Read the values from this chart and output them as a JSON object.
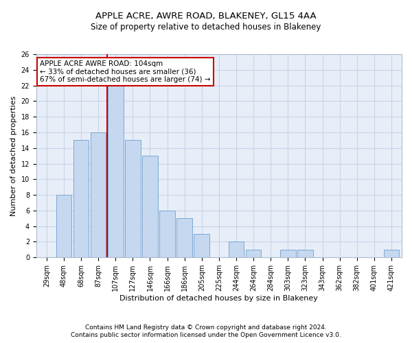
{
  "title": "APPLE ACRE, AWRE ROAD, BLAKENEY, GL15 4AA",
  "subtitle": "Size of property relative to detached houses in Blakeney",
  "xlabel": "Distribution of detached houses by size in Blakeney",
  "ylabel": "Number of detached properties",
  "footer_line1": "Contains HM Land Registry data © Crown copyright and database right 2024.",
  "footer_line2": "Contains public sector information licensed under the Open Government Licence v3.0.",
  "bar_labels": [
    "29sqm",
    "48sqm",
    "68sqm",
    "87sqm",
    "107sqm",
    "127sqm",
    "146sqm",
    "166sqm",
    "186sqm",
    "205sqm",
    "225sqm",
    "244sqm",
    "264sqm",
    "284sqm",
    "303sqm",
    "323sqm",
    "343sqm",
    "362sqm",
    "382sqm",
    "401sqm",
    "421sqm"
  ],
  "bar_values": [
    0,
    8,
    15,
    16,
    22,
    15,
    13,
    6,
    5,
    3,
    0,
    2,
    1,
    0,
    1,
    1,
    0,
    0,
    0,
    0,
    1
  ],
  "bar_color": "#c5d8f0",
  "bar_edge_color": "#7ba7d4",
  "vline_index": 4,
  "vline_color": "#cc0000",
  "annotation_text": "APPLE ACRE AWRE ROAD: 104sqm\n← 33% of detached houses are smaller (36)\n67% of semi-detached houses are larger (74) →",
  "annotation_box_color": "#ffffff",
  "annotation_box_edge": "#cc0000",
  "ylim": [
    0,
    26
  ],
  "yticks": [
    0,
    2,
    4,
    6,
    8,
    10,
    12,
    14,
    16,
    18,
    20,
    22,
    24,
    26
  ],
  "bg_color": "#ffffff",
  "grid_color": "#c8d4e8",
  "title_fontsize": 9.5,
  "subtitle_fontsize": 8.5,
  "axis_label_fontsize": 8,
  "tick_fontsize": 7,
  "footer_fontsize": 6.5,
  "annotation_fontsize": 7.5
}
